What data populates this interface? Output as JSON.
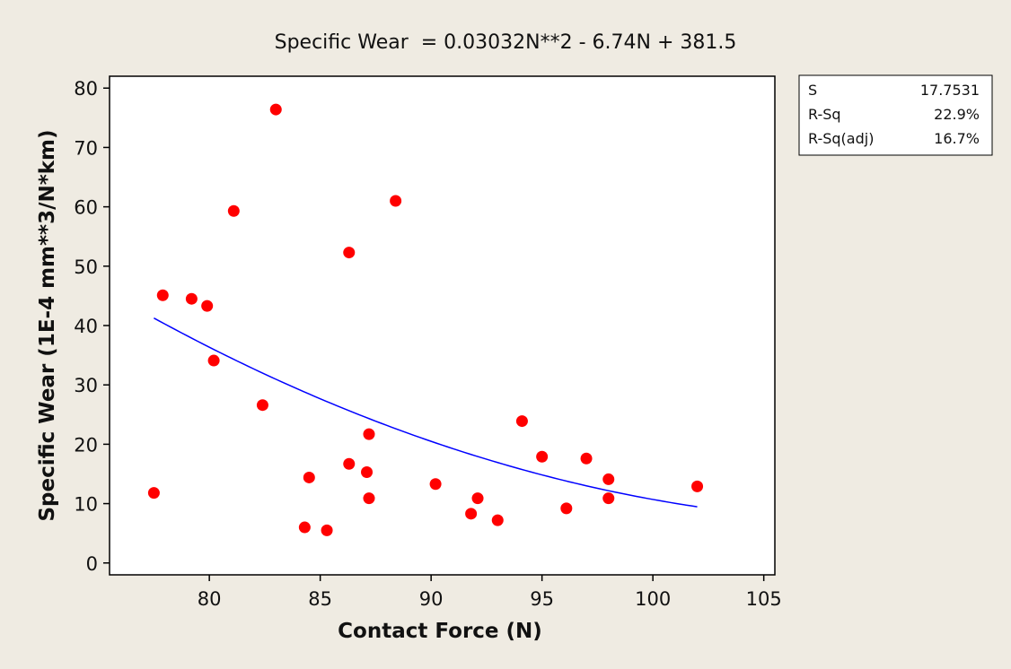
{
  "chart_data": {
    "type": "scatter",
    "title": "Specific Wear  = 0.03032N**2 - 6.74N + 381.5",
    "xlabel": "Contact Force (N)",
    "ylabel": "Specific Wear (1E-4 mm**3/N*km)",
    "xlim": [
      75.5,
      105.5
    ],
    "ylim": [
      -2,
      82
    ],
    "xticks": [
      80,
      85,
      90,
      95,
      100,
      105
    ],
    "yticks": [
      0,
      10,
      20,
      30,
      40,
      50,
      60,
      70,
      80
    ],
    "grid": false,
    "points": [
      {
        "x": 77.5,
        "y": 11.8
      },
      {
        "x": 77.9,
        "y": 45.1
      },
      {
        "x": 79.2,
        "y": 44.5
      },
      {
        "x": 79.9,
        "y": 43.3
      },
      {
        "x": 80.2,
        "y": 34.1
      },
      {
        "x": 81.1,
        "y": 59.3
      },
      {
        "x": 82.4,
        "y": 26.6
      },
      {
        "x": 83.0,
        "y": 76.4
      },
      {
        "x": 84.3,
        "y": 6.0
      },
      {
        "x": 84.5,
        "y": 14.4
      },
      {
        "x": 85.3,
        "y": 5.5
      },
      {
        "x": 86.3,
        "y": 52.3
      },
      {
        "x": 86.3,
        "y": 16.7
      },
      {
        "x": 87.1,
        "y": 15.3
      },
      {
        "x": 87.2,
        "y": 21.7
      },
      {
        "x": 87.2,
        "y": 10.9
      },
      {
        "x": 88.4,
        "y": 61.0
      },
      {
        "x": 90.2,
        "y": 13.3
      },
      {
        "x": 91.8,
        "y": 8.3
      },
      {
        "x": 92.1,
        "y": 10.9
      },
      {
        "x": 93.0,
        "y": 7.2
      },
      {
        "x": 94.1,
        "y": 23.9
      },
      {
        "x": 95.0,
        "y": 17.9
      },
      {
        "x": 96.1,
        "y": 9.2
      },
      {
        "x": 97.0,
        "y": 17.6
      },
      {
        "x": 98.0,
        "y": 14.1
      },
      {
        "x": 98.0,
        "y": 10.9
      },
      {
        "x": 102.0,
        "y": 12.9
      }
    ],
    "fit": {
      "equation": "0.03032N**2 - 6.74N + 381.5",
      "a": 0.03032,
      "b": -6.74,
      "c": 381.5,
      "x_range": [
        77.5,
        102.0
      ]
    },
    "stats": [
      {
        "label": "S",
        "value": "17.7531"
      },
      {
        "label": "R-Sq",
        "value": "22.9%"
      },
      {
        "label": "R-Sq(adj)",
        "value": "16.7%"
      }
    ],
    "colors": {
      "points": "#ff0000",
      "fit_line": "#0000ff",
      "plot_bg": "#ffffff",
      "outer_bg": "#efebe2"
    }
  }
}
